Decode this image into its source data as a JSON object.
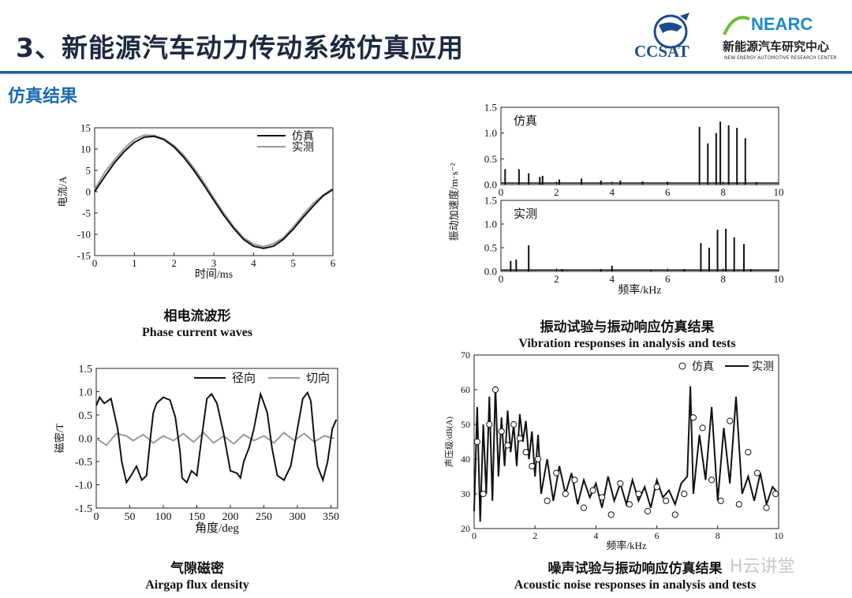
{
  "header": {
    "title": "3、新能源汽车动力传动系统仿真应用",
    "subtitle": "仿真结果"
  },
  "logos": {
    "ccsat": "CCSAT",
    "nearc": "NEARC",
    "nearc_cn": "新能源汽车研究中心",
    "nearc_en": "NEW ENERGY AUTOMOTIVE RESEARCH CENTER"
  },
  "captions": {
    "phase_zh": "相电流波形",
    "phase_en": "Phase current waves",
    "vib_zh": "振动试验与振动响应仿真结果",
    "vib_en": "Vibration responses in analysis and tests",
    "flux_zh": "气隙磁密",
    "flux_en": "Airgap flux density",
    "noise_zh": "噪声试验与振动响应仿真结果",
    "noise_en": "Acoustic noise responses in analysis and tests"
  },
  "watermark": "H云讲堂",
  "colors": {
    "sim": "#111111",
    "meas": "#999999",
    "accent": "#1b6bb1",
    "title": "#1c2a40"
  },
  "chart_data": [
    {
      "id": "phase",
      "type": "line",
      "xlabel": "时间/ms",
      "ylabel": "电流/A",
      "xlim": [
        0,
        6
      ],
      "ylim": [
        -15,
        15
      ],
      "xticks": [
        0,
        1,
        2,
        3,
        4,
        5,
        6
      ],
      "yticks": [
        -15,
        -10,
        -5,
        0,
        5,
        10,
        15
      ],
      "legend": "top-right",
      "series": [
        {
          "name": "仿真",
          "color": "#111111",
          "x": [
            0,
            0.25,
            0.5,
            0.75,
            1.0,
            1.25,
            1.5,
            1.75,
            2.0,
            2.25,
            2.5,
            2.75,
            3.0,
            3.25,
            3.5,
            3.75,
            4.0,
            4.25,
            4.5,
            4.75,
            5.0,
            5.25,
            5.5,
            5.75,
            6.0
          ],
          "y": [
            0,
            3.5,
            6.8,
            9.5,
            11.6,
            12.8,
            13.0,
            12.2,
            10.5,
            8.0,
            5.0,
            1.6,
            -2.0,
            -5.5,
            -8.6,
            -11.2,
            -12.8,
            -13.3,
            -12.8,
            -11.2,
            -8.8,
            -6.0,
            -3.4,
            -1.0,
            0.5
          ]
        },
        {
          "name": "实测",
          "color": "#999999",
          "x": [
            0,
            0.25,
            0.5,
            0.75,
            1.0,
            1.25,
            1.5,
            1.75,
            2.0,
            2.25,
            2.5,
            2.75,
            3.0,
            3.25,
            3.5,
            3.75,
            4.0,
            4.25,
            4.5,
            4.75,
            5.0,
            5.25,
            5.5,
            5.75,
            6.0
          ],
          "y": [
            0.5,
            4.5,
            7.5,
            10.2,
            12.3,
            13.3,
            13.2,
            12.4,
            10.8,
            8.5,
            5.6,
            2.2,
            -1.5,
            -5.0,
            -8.2,
            -10.8,
            -12.3,
            -12.9,
            -12.2,
            -10.8,
            -8.3,
            -5.4,
            -2.8,
            -0.8,
            0.8
          ]
        }
      ]
    },
    {
      "id": "vib_sim",
      "type": "line",
      "annotation": "仿真",
      "xlim": [
        0,
        10
      ],
      "ylim": [
        0,
        1.5
      ],
      "xticks": [
        0,
        2,
        4,
        6,
        8,
        10
      ],
      "yticks": [
        0.0,
        0.5,
        1.0,
        1.5
      ],
      "peaks": [
        {
          "f": 0.15,
          "a": 0.3
        },
        {
          "f": 0.65,
          "a": 0.3
        },
        {
          "f": 1.0,
          "a": 0.22
        },
        {
          "f": 1.4,
          "a": 0.15
        },
        {
          "f": 1.5,
          "a": 0.17
        },
        {
          "f": 2.1,
          "a": 0.1
        },
        {
          "f": 2.9,
          "a": 0.12
        },
        {
          "f": 3.6,
          "a": 0.08
        },
        {
          "f": 4.3,
          "a": 0.08
        },
        {
          "f": 5.1,
          "a": 0.06
        },
        {
          "f": 6.0,
          "a": 0.05
        },
        {
          "f": 7.15,
          "a": 1.12
        },
        {
          "f": 7.45,
          "a": 0.8
        },
        {
          "f": 7.75,
          "a": 1.0
        },
        {
          "f": 7.9,
          "a": 1.22
        },
        {
          "f": 8.2,
          "a": 1.15
        },
        {
          "f": 8.5,
          "a": 1.1
        },
        {
          "f": 8.8,
          "a": 0.9
        },
        {
          "f": 9.2,
          "a": 0.05
        }
      ]
    },
    {
      "id": "vib_meas",
      "type": "line",
      "annotation": "实测",
      "xlabel": "频率/kHz",
      "ylabel": "振动加速度/m·s⁻²",
      "xlim": [
        0,
        10
      ],
      "ylim": [
        0,
        1.5
      ],
      "xticks": [
        0,
        2,
        4,
        6,
        8,
        10
      ],
      "yticks": [
        0.0,
        0.5,
        1.0,
        1.5
      ],
      "peaks": [
        {
          "f": 0.35,
          "a": 0.22
        },
        {
          "f": 0.55,
          "a": 0.25
        },
        {
          "f": 1.0,
          "a": 0.55
        },
        {
          "f": 2.2,
          "a": 0.05
        },
        {
          "f": 3.6,
          "a": 0.05
        },
        {
          "f": 4.0,
          "a": 0.12
        },
        {
          "f": 5.4,
          "a": 0.04
        },
        {
          "f": 6.6,
          "a": 0.05
        },
        {
          "f": 7.2,
          "a": 0.6
        },
        {
          "f": 7.5,
          "a": 0.5
        },
        {
          "f": 7.8,
          "a": 0.88
        },
        {
          "f": 8.1,
          "a": 0.9
        },
        {
          "f": 8.4,
          "a": 0.72
        },
        {
          "f": 8.75,
          "a": 0.58
        },
        {
          "f": 9.0,
          "a": 0.05
        }
      ]
    },
    {
      "id": "flux",
      "type": "line",
      "xlabel": "角度/deg",
      "ylabel": "磁密/T",
      "xlim": [
        0,
        360
      ],
      "ylim": [
        -1.5,
        1.5
      ],
      "xticks": [
        0,
        50,
        100,
        150,
        200,
        250,
        300,
        350
      ],
      "yticks": [
        -1.5,
        -1.0,
        -0.5,
        0.0,
        0.5,
        1.0,
        1.5
      ],
      "legend": "top-right",
      "series": [
        {
          "name": "径向",
          "color": "#111111",
          "x": [
            0,
            5,
            12,
            22,
            32,
            38,
            45,
            52,
            60,
            68,
            75,
            80,
            85,
            90,
            100,
            110,
            118,
            125,
            128,
            135,
            142,
            150,
            158,
            165,
            172,
            180,
            190,
            200,
            210,
            215,
            220,
            228,
            235,
            245,
            255,
            262,
            270,
            280,
            290,
            300,
            308,
            315,
            320,
            325,
            330,
            338,
            345,
            352,
            358
          ],
          "y": [
            0.7,
            0.88,
            0.75,
            0.85,
            0.2,
            -0.5,
            -0.95,
            -0.8,
            -0.6,
            -0.9,
            -0.8,
            -0.1,
            0.55,
            0.75,
            0.88,
            0.82,
            0.45,
            -0.3,
            -0.85,
            -0.95,
            -0.7,
            -0.8,
            0.1,
            0.85,
            0.95,
            0.75,
            0.1,
            -0.7,
            -0.75,
            -0.85,
            -0.5,
            -0.2,
            0.2,
            0.95,
            0.55,
            -0.2,
            -0.8,
            -0.9,
            -0.6,
            0.2,
            0.85,
            0.98,
            0.8,
            0.0,
            -0.6,
            -0.9,
            -0.5,
            0.2,
            0.4
          ]
        },
        {
          "name": "切向",
          "color": "#999999",
          "x": [
            0,
            15,
            30,
            45,
            55,
            70,
            85,
            100,
            115,
            130,
            145,
            160,
            175,
            190,
            205,
            220,
            235,
            250,
            265,
            280,
            295,
            310,
            325,
            340,
            355
          ],
          "y": [
            0.0,
            -0.15,
            0.1,
            0.05,
            -0.05,
            0.08,
            -0.1,
            0.05,
            -0.05,
            0.1,
            -0.08,
            0.12,
            -0.1,
            0.05,
            -0.12,
            0.08,
            -0.05,
            0.05,
            -0.1,
            0.12,
            -0.05,
            0.1,
            -0.08,
            0.05,
            0.0
          ]
        }
      ]
    },
    {
      "id": "noise",
      "type": "scatter",
      "xlabel": "频率/kHz",
      "ylabel": "声压级/dB(A)",
      "xlim": [
        0,
        10
      ],
      "ylim": [
        20,
        70
      ],
      "xticks": [
        0,
        2,
        4,
        6,
        8,
        10
      ],
      "yticks": [
        20,
        30,
        40,
        50,
        60,
        70
      ],
      "legend": "top-right",
      "series": [
        {
          "name": "仿真",
          "marker": "circle",
          "x": [
            0.1,
            0.3,
            0.5,
            0.7,
            0.9,
            1.1,
            1.3,
            1.5,
            1.7,
            1.9,
            2.1,
            2.4,
            2.7,
            3.0,
            3.3,
            3.6,
            3.9,
            4.2,
            4.5,
            4.8,
            5.1,
            5.4,
            5.7,
            6.0,
            6.3,
            6.6,
            6.9,
            7.2,
            7.5,
            7.8,
            8.1,
            8.4,
            8.7,
            9.0,
            9.3,
            9.6,
            9.9
          ],
          "y": [
            45,
            30,
            50,
            60,
            48,
            44,
            50,
            46,
            42,
            38,
            40,
            28,
            36,
            30,
            34,
            26,
            31,
            29,
            24,
            33,
            27,
            30,
            25,
            32,
            28,
            24,
            30,
            52,
            49,
            34,
            28,
            51,
            27,
            42,
            36,
            26,
            30
          ]
        },
        {
          "name": "实测",
          "marker": "line",
          "x": [
            0,
            0.1,
            0.2,
            0.3,
            0.4,
            0.5,
            0.6,
            0.7,
            0.8,
            0.9,
            1.0,
            1.1,
            1.2,
            1.3,
            1.4,
            1.5,
            1.6,
            1.7,
            1.8,
            1.9,
            2.0,
            2.1,
            2.2,
            2.4,
            2.6,
            2.8,
            3.0,
            3.2,
            3.4,
            3.6,
            3.8,
            4.0,
            4.2,
            4.4,
            4.6,
            4.8,
            5.0,
            5.2,
            5.4,
            5.6,
            5.8,
            6.0,
            6.2,
            6.4,
            6.6,
            6.8,
            7.0,
            7.1,
            7.2,
            7.4,
            7.6,
            7.8,
            8.0,
            8.2,
            8.4,
            8.6,
            8.8,
            9.0,
            9.2,
            9.4,
            9.6,
            9.8,
            10.0
          ],
          "y": [
            25,
            55,
            22,
            50,
            30,
            58,
            28,
            61,
            35,
            52,
            38,
            54,
            42,
            50,
            38,
            53,
            45,
            51,
            40,
            48,
            35,
            47,
            30,
            40,
            28,
            38,
            30,
            36,
            27,
            34,
            29,
            33,
            26,
            35,
            28,
            33,
            27,
            34,
            28,
            32,
            26,
            34,
            29,
            31,
            27,
            33,
            35,
            61,
            30,
            47,
            34,
            55,
            28,
            49,
            33,
            58,
            30,
            35,
            28,
            36,
            27,
            32,
            30
          ]
        }
      ]
    }
  ]
}
